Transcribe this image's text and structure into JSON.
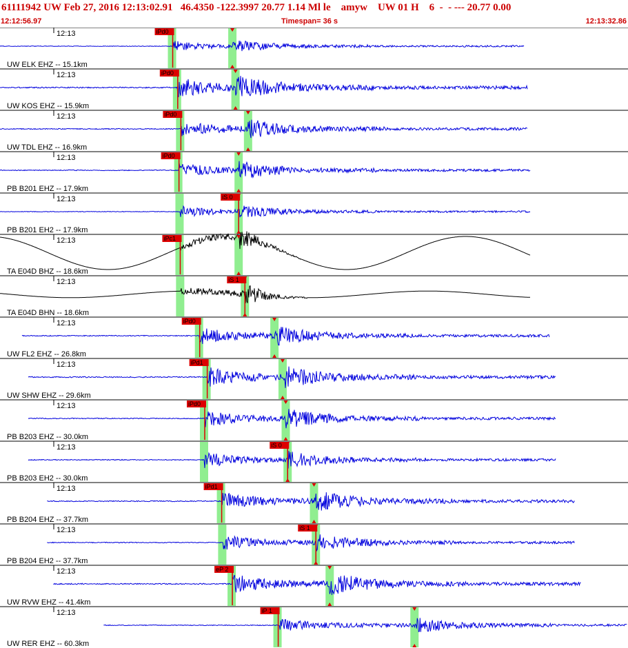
{
  "header": {
    "title": "61111942 UW Feb 27, 2016 12:13:02.91   46.4350 -122.3997 20.77 1.14 Ml le    amyw    UW 01 H    6  -  - --- 20.77 0.00",
    "start_time": "12:12:56.97",
    "timespan": "Timespan=  36 s",
    "end_time": "12:13:32.86"
  },
  "colors": {
    "header_text": "#cc0000",
    "trace_blue": "#0000dd",
    "trace_black": "#000000",
    "pick_box": "#dd0000",
    "window_green": "#90ee90",
    "divider": "#000000"
  },
  "time_tick_label": "12:13",
  "traces": [
    {
      "label": "UW ELK EHZ -- 15.1km",
      "color": "blue",
      "type": "hf",
      "p_pick": "iPd0",
      "s_pick": "",
      "start": 0.0,
      "end": 0.835,
      "p": 0.275,
      "s": 0.37,
      "amp": 0.14
    },
    {
      "label": "UW KOS EHZ -- 15.9km",
      "color": "blue",
      "type": "hf",
      "p_pick": "iPd0",
      "s_pick": "",
      "start": 0.0,
      "end": 0.84,
      "p": 0.283,
      "s": 0.375,
      "amp": 0.28
    },
    {
      "label": "UW TDL EHZ -- 16.9km",
      "color": "blue",
      "type": "hf",
      "p_pick": "iPd0",
      "s_pick": "",
      "start": 0.0,
      "end": 0.84,
      "p": 0.288,
      "s": 0.395,
      "amp": 0.22
    },
    {
      "label": "PB B201 EHZ -- 17.9km",
      "color": "blue",
      "type": "hf",
      "p_pick": "iPd0",
      "s_pick": "",
      "start": 0.0,
      "end": 0.845,
      "p": 0.285,
      "s": 0.38,
      "amp": 0.2
    },
    {
      "label": "PB B201 EH2 -- 17.9km",
      "color": "blue",
      "type": "hf",
      "p_pick": "",
      "s_pick": "iS 0",
      "start": 0.0,
      "end": 0.845,
      "p": 0.287,
      "s": 0.38,
      "amp": 0.15
    },
    {
      "label": "TA E04D BHZ -- 18.6km",
      "color": "black",
      "type": "lf",
      "p_pick": "iPc1",
      "s_pick": "",
      "start": 0.0,
      "end": 0.845,
      "p": 0.287,
      "s": 0.38,
      "amp": 0.4
    },
    {
      "label": "TA E04D BHN -- 18.6km",
      "color": "black",
      "type": "lf",
      "p_pick": "",
      "s_pick": "iS 1",
      "start": 0.0,
      "end": 0.845,
      "p": 0.288,
      "s": 0.39,
      "amp": 0.2
    },
    {
      "label": "UW FL2 EHZ -- 26.8km",
      "color": "blue",
      "type": "hf",
      "p_pick": "iPd0",
      "s_pick": "",
      "start": 0.035,
      "end": 0.875,
      "p": 0.318,
      "s": 0.437,
      "amp": 0.22
    },
    {
      "label": "UW SHW EHZ -- 29.6km",
      "color": "blue",
      "type": "hf",
      "p_pick": "iPd1",
      "s_pick": "",
      "start": 0.045,
      "end": 0.885,
      "p": 0.33,
      "s": 0.45,
      "amp": 0.26
    },
    {
      "label": "PB B203 EHZ -- 30.0km",
      "color": "blue",
      "type": "hf",
      "p_pick": "iPd0",
      "s_pick": "",
      "start": 0.045,
      "end": 0.885,
      "p": 0.326,
      "s": 0.455,
      "amp": 0.22
    },
    {
      "label": "PB B203 EH2 -- 30.0km",
      "color": "blue",
      "type": "hf",
      "p_pick": "",
      "s_pick": "iS 0",
      "start": 0.045,
      "end": 0.885,
      "p": 0.326,
      "s": 0.458,
      "amp": 0.2
    },
    {
      "label": "PB B204 EHZ -- 37.7km",
      "color": "blue",
      "type": "hf",
      "p_pick": "iPd1",
      "s_pick": "",
      "start": 0.075,
      "end": 0.915,
      "p": 0.353,
      "s": 0.5,
      "amp": 0.24
    },
    {
      "label": "PB B204 EH2 -- 37.7km",
      "color": "blue",
      "type": "hf",
      "p_pick": "",
      "s_pick": "iS 1",
      "start": 0.075,
      "end": 0.915,
      "p": 0.355,
      "s": 0.503,
      "amp": 0.2
    },
    {
      "label": "UW RVW EHZ -- 41.4km",
      "color": "blue",
      "type": "hf",
      "p_pick": "eP 2",
      "s_pick": "",
      "start": 0.085,
      "end": 0.925,
      "p": 0.37,
      "s": 0.525,
      "amp": 0.26
    },
    {
      "label": "UW RER EHZ -- 60.3km",
      "color": "blue",
      "type": "hf",
      "p_pick": "iP 1",
      "s_pick": "",
      "start": 0.165,
      "end": 1.0,
      "p": 0.443,
      "s": 0.66,
      "amp": 0.18
    }
  ]
}
